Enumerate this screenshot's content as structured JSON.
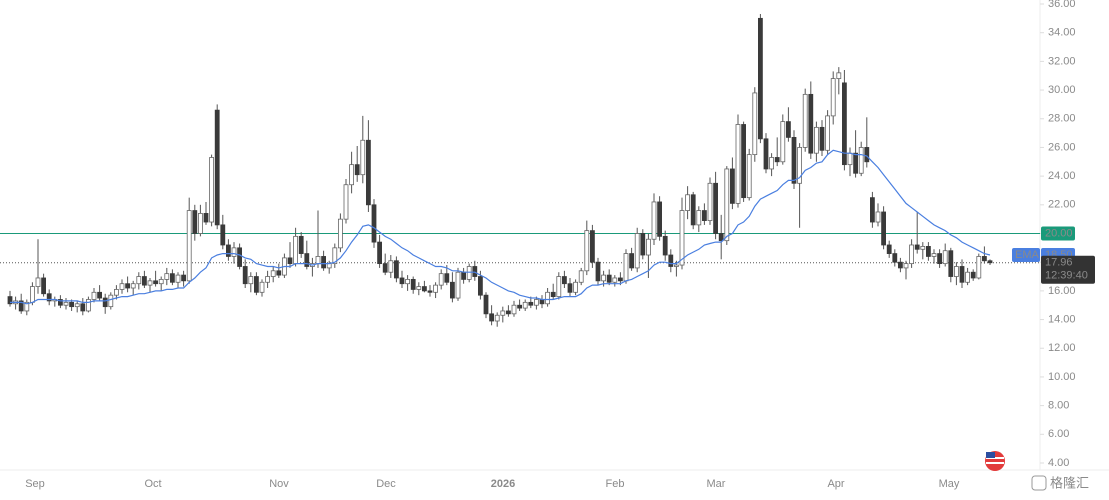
{
  "chart_data": {
    "type": "candlestick",
    "ylim": [
      4,
      36
    ],
    "yticks": [
      {
        "value": 4,
        "label": "4.00"
      },
      {
        "value": 6,
        "label": "6.00"
      },
      {
        "value": 8,
        "label": "8.00"
      },
      {
        "value": 10,
        "label": "10.00"
      },
      {
        "value": 12,
        "label": "12.00"
      },
      {
        "value": 14,
        "label": "14.00"
      },
      {
        "value": 16,
        "label": "16.00"
      },
      {
        "value": 18,
        "label": "18.00"
      },
      {
        "value": 20,
        "label": "20.00"
      },
      {
        "value": 22,
        "label": "22.00"
      },
      {
        "value": 24,
        "label": "24.00"
      },
      {
        "value": 26,
        "label": "26.00"
      },
      {
        "value": 28,
        "label": "28.00"
      },
      {
        "value": 30,
        "label": "30.00"
      },
      {
        "value": 32,
        "label": "32.00"
      },
      {
        "value": 34,
        "label": "34.00"
      },
      {
        "value": 36,
        "label": "36.00"
      }
    ],
    "x_labels": [
      "Sep",
      "Oct",
      "Nov",
      "Dec",
      "2026",
      "Feb",
      "Mar",
      "Apr",
      "May"
    ],
    "up_color": "#ffffff",
    "down_color": "#3a3a3a",
    "ema_color": "#4a7fe0",
    "hline_color": "#1a9a7a",
    "hline": {
      "value": 20,
      "label": "20.00"
    },
    "ema_name": "EMA",
    "ema_last": {
      "value": 18.5,
      "label": "18.50"
    },
    "last_price": 17.96,
    "time": "12:39:40",
    "watermark": "格隆汇",
    "candles": [
      [
        15.6,
        16.0,
        14.9,
        15.1
      ],
      [
        15.1,
        15.6,
        14.7,
        15.3
      ],
      [
        15.3,
        15.8,
        14.4,
        14.6
      ],
      [
        14.6,
        15.4,
        14.3,
        15.2
      ],
      [
        15.2,
        16.6,
        15.0,
        16.3
      ],
      [
        16.3,
        19.6,
        15.8,
        16.9
      ],
      [
        16.9,
        17.2,
        15.6,
        15.8
      ],
      [
        15.8,
        16.1,
        15.0,
        15.3
      ],
      [
        15.3,
        15.6,
        14.9,
        15.4
      ],
      [
        15.4,
        15.7,
        14.8,
        15.0
      ],
      [
        15.0,
        15.5,
        14.7,
        15.2
      ],
      [
        15.2,
        15.4,
        14.6,
        14.9
      ],
      [
        14.9,
        15.3,
        14.5,
        15.1
      ],
      [
        15.1,
        15.5,
        14.3,
        14.6
      ],
      [
        14.6,
        15.6,
        14.5,
        15.4
      ],
      [
        15.4,
        16.2,
        15.2,
        15.9
      ],
      [
        15.9,
        16.4,
        15.3,
        15.5
      ],
      [
        15.5,
        15.8,
        14.4,
        14.9
      ],
      [
        14.9,
        15.9,
        14.7,
        15.7
      ],
      [
        15.7,
        16.4,
        15.4,
        16.1
      ],
      [
        16.1,
        16.8,
        15.8,
        16.5
      ],
      [
        16.5,
        17.0,
        15.9,
        16.2
      ],
      [
        16.2,
        16.7,
        15.7,
        16.5
      ],
      [
        16.5,
        17.3,
        16.1,
        17.0
      ],
      [
        17.0,
        17.4,
        16.2,
        16.4
      ],
      [
        16.4,
        16.9,
        15.9,
        16.7
      ],
      [
        16.7,
        17.4,
        16.3,
        16.5
      ],
      [
        16.5,
        17.0,
        16.0,
        16.8
      ],
      [
        16.8,
        17.6,
        16.4,
        17.2
      ],
      [
        17.2,
        17.5,
        16.4,
        16.6
      ],
      [
        16.6,
        17.3,
        16.2,
        17.1
      ],
      [
        17.1,
        17.4,
        16.3,
        16.7
      ],
      [
        16.7,
        22.5,
        16.5,
        21.6
      ],
      [
        21.6,
        22.0,
        19.5,
        20.0
      ],
      [
        20.0,
        22.0,
        19.8,
        21.4
      ],
      [
        21.4,
        22.2,
        20.6,
        20.8
      ],
      [
        20.8,
        25.5,
        20.5,
        25.3
      ],
      [
        28.6,
        29.0,
        20.3,
        20.6
      ],
      [
        20.6,
        21.3,
        18.9,
        19.2
      ],
      [
        19.2,
        19.6,
        18.1,
        18.4
      ],
      [
        18.4,
        19.4,
        17.9,
        19.0
      ],
      [
        19.0,
        19.3,
        17.5,
        17.7
      ],
      [
        17.7,
        18.2,
        16.2,
        16.5
      ],
      [
        16.5,
        17.3,
        15.9,
        17.0
      ],
      [
        17.0,
        17.3,
        15.7,
        15.9
      ],
      [
        15.9,
        16.8,
        15.6,
        16.6
      ],
      [
        16.6,
        17.4,
        16.2,
        17.0
      ],
      [
        17.0,
        17.7,
        16.6,
        17.4
      ],
      [
        17.4,
        17.9,
        16.9,
        17.1
      ],
      [
        17.1,
        18.6,
        16.9,
        18.3
      ],
      [
        18.3,
        19.4,
        17.6,
        17.9
      ],
      [
        17.9,
        20.4,
        17.7,
        19.8
      ],
      [
        19.8,
        20.1,
        18.3,
        18.6
      ],
      [
        18.6,
        19.5,
        17.5,
        17.7
      ],
      [
        17.7,
        18.3,
        17.0,
        17.9
      ],
      [
        17.9,
        21.6,
        17.6,
        18.4
      ],
      [
        18.4,
        18.8,
        17.4,
        17.6
      ],
      [
        17.6,
        18.1,
        17.2,
        17.9
      ],
      [
        17.9,
        19.3,
        17.6,
        19.0
      ],
      [
        19.0,
        21.4,
        18.7,
        21.0
      ],
      [
        21.0,
        23.8,
        20.7,
        23.4
      ],
      [
        23.4,
        25.7,
        22.8,
        24.8
      ],
      [
        24.8,
        26.1,
        23.6,
        24.1
      ],
      [
        24.1,
        28.2,
        23.5,
        26.5
      ],
      [
        26.5,
        27.9,
        21.5,
        22.0
      ],
      [
        22.0,
        22.4,
        19.0,
        19.4
      ],
      [
        19.4,
        19.9,
        17.6,
        17.9
      ],
      [
        17.9,
        18.6,
        17.1,
        17.3
      ],
      [
        17.3,
        18.5,
        16.9,
        18.1
      ],
      [
        18.1,
        18.4,
        16.6,
        16.9
      ],
      [
        16.9,
        17.4,
        16.2,
        16.5
      ],
      [
        16.5,
        17.1,
        16.0,
        16.8
      ],
      [
        16.8,
        17.0,
        15.8,
        16.1
      ],
      [
        16.1,
        16.6,
        15.7,
        16.3
      ],
      [
        16.3,
        16.7,
        15.9,
        16.0
      ],
      [
        16.0,
        16.4,
        15.6,
        15.9
      ],
      [
        15.9,
        16.6,
        15.5,
        16.4
      ],
      [
        16.4,
        17.5,
        16.1,
        17.2
      ],
      [
        17.2,
        17.8,
        16.4,
        16.6
      ],
      [
        16.6,
        17.3,
        15.2,
        15.5
      ],
      [
        15.5,
        17.6,
        15.3,
        17.3
      ],
      [
        17.3,
        17.6,
        16.5,
        16.8
      ],
      [
        16.8,
        17.9,
        16.6,
        17.7
      ],
      [
        17.7,
        18.1,
        16.7,
        17.0
      ],
      [
        17.0,
        17.4,
        15.4,
        15.7
      ],
      [
        15.7,
        15.9,
        14.1,
        14.4
      ],
      [
        14.4,
        15.0,
        13.6,
        13.9
      ],
      [
        13.9,
        14.5,
        13.5,
        14.3
      ],
      [
        14.3,
        14.9,
        13.8,
        14.6
      ],
      [
        14.6,
        15.0,
        14.2,
        14.4
      ],
      [
        14.4,
        15.3,
        14.2,
        15.0
      ],
      [
        15.0,
        15.4,
        14.6,
        14.8
      ],
      [
        14.8,
        15.4,
        14.6,
        15.2
      ],
      [
        15.2,
        15.6,
        14.8,
        15.0
      ],
      [
        15.0,
        15.6,
        14.7,
        15.4
      ],
      [
        15.4,
        15.7,
        14.8,
        15.1
      ],
      [
        15.1,
        16.2,
        14.9,
        15.9
      ],
      [
        15.9,
        16.5,
        15.4,
        15.6
      ],
      [
        15.6,
        17.3,
        15.4,
        17.0
      ],
      [
        17.0,
        17.4,
        16.2,
        16.5
      ],
      [
        16.5,
        16.9,
        15.6,
        15.9
      ],
      [
        15.9,
        16.8,
        15.7,
        16.6
      ],
      [
        16.6,
        17.6,
        16.4,
        17.4
      ],
      [
        17.4,
        20.9,
        17.1,
        20.2
      ],
      [
        20.2,
        20.6,
        17.6,
        18.0
      ],
      [
        18.0,
        18.3,
        16.4,
        16.7
      ],
      [
        16.7,
        17.4,
        16.3,
        17.1
      ],
      [
        17.1,
        17.5,
        16.4,
        16.6
      ],
      [
        16.6,
        17.1,
        16.3,
        16.9
      ],
      [
        16.9,
        17.3,
        16.4,
        16.7
      ],
      [
        16.7,
        18.9,
        16.5,
        18.6
      ],
      [
        18.6,
        19.0,
        17.4,
        17.6
      ],
      [
        17.6,
        20.4,
        17.3,
        20.0
      ],
      [
        20.0,
        20.3,
        18.2,
        18.5
      ],
      [
        18.5,
        20.0,
        16.9,
        19.6
      ],
      [
        19.6,
        22.8,
        19.2,
        22.2
      ],
      [
        22.2,
        22.6,
        19.5,
        19.8
      ],
      [
        19.8,
        20.2,
        18.1,
        18.5
      ],
      [
        18.5,
        18.9,
        17.3,
        17.7
      ],
      [
        17.7,
        18.1,
        17.0,
        17.8
      ],
      [
        17.8,
        22.5,
        17.5,
        21.6
      ],
      [
        21.6,
        23.3,
        21.0,
        22.7
      ],
      [
        22.7,
        22.9,
        20.3,
        20.6
      ],
      [
        20.6,
        21.9,
        20.1,
        21.6
      ],
      [
        21.6,
        22.1,
        20.6,
        20.9
      ],
      [
        20.9,
        23.9,
        20.6,
        23.5
      ],
      [
        23.5,
        24.3,
        19.6,
        20.0
      ],
      [
        20.0,
        21.3,
        18.2,
        19.5
      ],
      [
        19.5,
        24.7,
        19.2,
        24.5
      ],
      [
        24.5,
        25.3,
        21.7,
        22.1
      ],
      [
        22.1,
        28.3,
        21.8,
        27.6
      ],
      [
        27.6,
        27.8,
        22.2,
        22.5
      ],
      [
        22.5,
        25.9,
        22.3,
        25.5
      ],
      [
        25.5,
        30.2,
        25.0,
        29.8
      ],
      [
        35.0,
        35.3,
        26.3,
        26.6
      ],
      [
        26.6,
        27.0,
        24.2,
        24.5
      ],
      [
        24.5,
        25.6,
        24.0,
        25.3
      ],
      [
        25.3,
        26.7,
        24.7,
        25.0
      ],
      [
        25.0,
        28.3,
        24.8,
        27.8
      ],
      [
        27.8,
        28.8,
        26.4,
        26.7
      ],
      [
        26.7,
        27.2,
        23.1,
        23.5
      ],
      [
        23.5,
        26.3,
        20.4,
        26.0
      ],
      [
        26.0,
        30.1,
        25.7,
        29.7
      ],
      [
        29.7,
        30.6,
        25.2,
        25.6
      ],
      [
        25.6,
        27.8,
        25.0,
        27.4
      ],
      [
        27.4,
        27.9,
        25.4,
        25.8
      ],
      [
        25.8,
        28.6,
        25.5,
        28.2
      ],
      [
        28.2,
        31.3,
        27.6,
        30.8
      ],
      [
        30.8,
        31.6,
        29.7,
        31.2
      ],
      [
        30.5,
        31.4,
        24.4,
        24.8
      ],
      [
        24.8,
        26.0,
        24.0,
        25.6
      ],
      [
        25.6,
        27.2,
        23.9,
        24.2
      ],
      [
        24.2,
        26.4,
        24.0,
        26.0
      ],
      [
        26.0,
        28.1,
        24.6,
        25.0
      ],
      [
        22.5,
        22.9,
        20.4,
        20.8
      ],
      [
        20.8,
        22.1,
        20.5,
        21.5
      ],
      [
        21.5,
        21.9,
        18.9,
        19.2
      ],
      [
        19.2,
        19.5,
        18.3,
        18.6
      ],
      [
        18.6,
        18.9,
        17.7,
        18.0
      ],
      [
        18.0,
        18.3,
        17.3,
        17.6
      ],
      [
        17.6,
        18.1,
        16.8,
        17.9
      ],
      [
        17.9,
        19.6,
        17.6,
        19.2
      ],
      [
        19.2,
        21.5,
        18.6,
        18.9
      ],
      [
        18.9,
        19.4,
        18.2,
        19.1
      ],
      [
        19.1,
        19.4,
        18.1,
        18.4
      ],
      [
        18.4,
        18.9,
        17.9,
        18.6
      ],
      [
        18.6,
        18.9,
        17.6,
        17.9
      ],
      [
        17.9,
        19.3,
        17.7,
        18.8
      ],
      [
        18.8,
        19.0,
        16.6,
        17.0
      ],
      [
        17.0,
        18.0,
        16.4,
        17.7
      ],
      [
        17.7,
        18.2,
        16.2,
        16.6
      ],
      [
        16.6,
        17.6,
        16.4,
        17.3
      ],
      [
        17.3,
        17.5,
        16.7,
        16.9
      ],
      [
        16.9,
        18.6,
        16.8,
        18.4
      ],
      [
        18.4,
        19.1,
        17.9,
        18.1
      ],
      [
        18.1,
        18.2,
        17.8,
        17.96
      ]
    ],
    "ema": [
      15.2,
      15.2,
      15.2,
      15.1,
      15.2,
      15.4,
      15.4,
      15.4,
      15.4,
      15.3,
      15.3,
      15.3,
      15.3,
      15.2,
      15.2,
      15.3,
      15.3,
      15.3,
      15.4,
      15.5,
      15.6,
      15.6,
      15.7,
      15.8,
      15.8,
      15.9,
      16.0,
      16.0,
      16.1,
      16.1,
      16.2,
      16.2,
      16.6,
      16.9,
      17.3,
      17.6,
      18.3,
      18.5,
      18.6,
      18.6,
      18.6,
      18.5,
      18.3,
      18.2,
      17.9,
      17.8,
      17.7,
      17.7,
      17.6,
      17.7,
      17.7,
      17.9,
      17.9,
      17.9,
      17.8,
      17.9,
      17.9,
      17.9,
      18.0,
      18.3,
      18.8,
      19.4,
      19.9,
      20.5,
      20.6,
      20.4,
      20.1,
      19.8,
      19.6,
      19.3,
      19.0,
      18.8,
      18.5,
      18.3,
      18.1,
      17.9,
      17.7,
      17.7,
      17.6,
      17.4,
      17.4,
      17.3,
      17.3,
      17.3,
      17.1,
      16.9,
      16.6,
      16.4,
      16.2,
      16.0,
      15.9,
      15.7,
      15.6,
      15.5,
      15.5,
      15.4,
      15.4,
      15.4,
      15.5,
      15.6,
      15.6,
      15.6,
      15.8,
      16.2,
      16.4,
      16.4,
      16.5,
      16.5,
      16.5,
      16.5,
      16.7,
      16.8,
      17.0,
      17.2,
      17.4,
      17.8,
      18.0,
      18.0,
      17.9,
      17.9,
      18.2,
      18.5,
      18.7,
      18.9,
      19.2,
      19.3,
      19.4,
      19.4,
      19.8,
      20.0,
      20.6,
      20.8,
      21.2,
      21.9,
      22.4,
      22.6,
      22.8,
      23.0,
      23.4,
      23.7,
      23.7,
      23.9,
      24.4,
      24.6,
      24.9,
      25.0,
      25.5,
      25.8,
      25.7,
      25.6,
      25.6,
      25.5,
      25.5,
      25.4,
      25.0,
      24.6,
      24.1,
      23.6,
      23.1,
      22.6,
      22.1,
      21.8,
      21.5,
      21.2,
      20.9,
      20.6,
      20.4,
      20.2,
      19.9,
      19.7,
      19.4,
      19.2,
      19.0,
      18.8,
      18.6,
      18.5
    ]
  }
}
